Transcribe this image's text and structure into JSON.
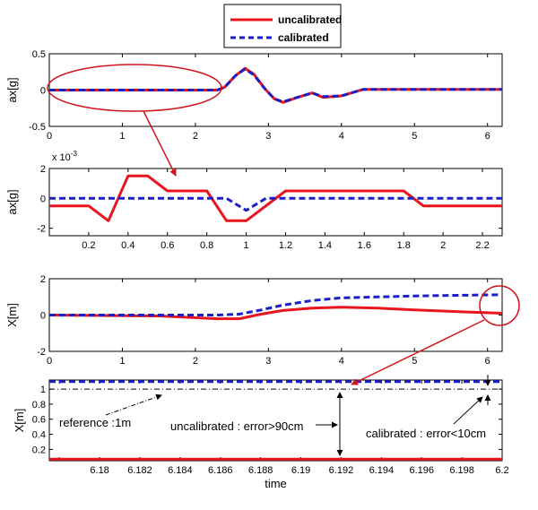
{
  "legend": {
    "entries": [
      {
        "label": "uncalibrated",
        "color": "#e8141e",
        "dash": "solid"
      },
      {
        "label": "calibrated",
        "color": "#1a1fc8",
        "dash": "dashed"
      }
    ]
  },
  "colors": {
    "uncalibrated": "#e8141e",
    "calibrated": "#1a1fc8",
    "annotation": "#d0141e"
  },
  "chart_data": [
    {
      "type": "line",
      "ylabel": "ax[g]",
      "xlim": [
        0,
        6.2
      ],
      "ylim": [
        -0.5,
        0.5
      ],
      "xticks": [
        0,
        1,
        2,
        3,
        4,
        5,
        6
      ],
      "xtick_labels": [
        "0",
        "1",
        "2",
        "3",
        "4",
        "5",
        "6"
      ],
      "yticks": [
        -0.5,
        0,
        0.5
      ],
      "ytick_labels": [
        "-0.5",
        "0",
        "0.5"
      ],
      "series": [
        {
          "name": "uncalibrated",
          "color": "#e8141e",
          "dash": "solid",
          "x": [
            0,
            2.3,
            2.4,
            2.55,
            2.68,
            2.8,
            2.95,
            3.08,
            3.2,
            3.4,
            3.6,
            3.75,
            4.0,
            4.2,
            4.3,
            6.2
          ],
          "y": [
            0,
            0,
            0.04,
            0.2,
            0.3,
            0.22,
            0.02,
            -0.12,
            -0.17,
            -0.1,
            -0.04,
            -0.1,
            -0.08,
            -0.02,
            0.01,
            0.01
          ]
        },
        {
          "name": "calibrated",
          "color": "#1a1fc8",
          "dash": "dashed",
          "x": [
            0,
            2.3,
            2.4,
            2.55,
            2.68,
            2.8,
            2.95,
            3.08,
            3.2,
            3.4,
            3.6,
            3.75,
            4.0,
            4.2,
            4.3,
            6.2
          ],
          "y": [
            0,
            0,
            0.04,
            0.2,
            0.29,
            0.21,
            0.02,
            -0.12,
            -0.16,
            -0.1,
            -0.04,
            -0.09,
            -0.08,
            -0.02,
            0.01,
            0.01
          ]
        }
      ]
    },
    {
      "type": "line",
      "ylabel": "ax[g]",
      "exponent_label": "x 10",
      "exponent_power": "-3",
      "xlim": [
        0,
        2.3
      ],
      "ylim": [
        -2.5,
        2
      ],
      "xticks": [
        0.2,
        0.4,
        0.6,
        0.8,
        1,
        1.2,
        1.4,
        1.6,
        1.8,
        2,
        2.2
      ],
      "xtick_labels": [
        "0.2",
        "0.4",
        "0.6",
        "0.8",
        "1",
        "1.2",
        "1.4",
        "1.6",
        "1.8",
        "2",
        "2.2"
      ],
      "yticks": [
        -2,
        0,
        2
      ],
      "ytick_labels": [
        "-2",
        "0",
        "2"
      ],
      "series": [
        {
          "name": "uncalibrated",
          "color": "#e8141e",
          "dash": "solid",
          "x": [
            0,
            0.2,
            0.3,
            0.4,
            0.5,
            0.6,
            0.8,
            0.9,
            1.0,
            1.1,
            1.2,
            1.8,
            1.9,
            2.3
          ],
          "y": [
            -0.5,
            -0.5,
            -1.5,
            1.5,
            1.5,
            0.5,
            0.5,
            -1.5,
            -1.5,
            -0.5,
            0.5,
            0.5,
            -0.5,
            -0.5
          ]
        },
        {
          "name": "calibrated",
          "color": "#1a1fc8",
          "dash": "dashed",
          "x": [
            0,
            0.9,
            1.0,
            1.1,
            2.3
          ],
          "y": [
            0,
            0,
            -0.8,
            0,
            0
          ]
        }
      ]
    },
    {
      "type": "line",
      "ylabel": "X[m]",
      "xlim": [
        0,
        6.2
      ],
      "ylim": [
        -2,
        2
      ],
      "xticks": [
        0,
        1,
        2,
        3,
        4,
        5,
        6
      ],
      "xtick_labels": [
        "0",
        "1",
        "2",
        "3",
        "4",
        "5",
        "6"
      ],
      "yticks": [
        -2,
        0,
        2
      ],
      "ytick_labels": [
        "-2",
        "0",
        "2"
      ],
      "series": [
        {
          "name": "uncalibrated",
          "color": "#e8141e",
          "dash": "solid",
          "x": [
            0,
            1.5,
            2.3,
            2.6,
            2.9,
            3.2,
            3.6,
            4.0,
            4.5,
            5.0,
            5.5,
            6.2
          ],
          "y": [
            0,
            -0.05,
            -0.2,
            -0.2,
            0.05,
            0.25,
            0.38,
            0.43,
            0.38,
            0.28,
            0.2,
            0.1
          ]
        },
        {
          "name": "calibrated",
          "color": "#1a1fc8",
          "dash": "dashed",
          "x": [
            0,
            1.5,
            2.3,
            2.6,
            2.9,
            3.2,
            3.6,
            4.0,
            4.5,
            5.0,
            5.5,
            6.2
          ],
          "y": [
            0,
            0,
            0,
            0.05,
            0.28,
            0.55,
            0.8,
            0.95,
            1.0,
            1.05,
            1.08,
            1.12
          ]
        }
      ]
    },
    {
      "type": "line",
      "xlabel": "time",
      "ylabel": "X[m]",
      "xlim": [
        6.1775,
        6.2
      ],
      "ylim": [
        0.05,
        1.12
      ],
      "xticks": [
        6.178,
        6.18,
        6.182,
        6.184,
        6.186,
        6.188,
        6.19,
        6.192,
        6.194,
        6.196,
        6.198,
        6.2
      ],
      "xtick_labels": [
        "",
        "6.18",
        "6.182",
        "6.184",
        "6.186",
        "6.188",
        "6.19",
        "6.192",
        "6.194",
        "6.196",
        "6.198",
        "6.2"
      ],
      "yticks": [
        0.2,
        0.4,
        0.6,
        0.8,
        1
      ],
      "ytick_labels": [
        "0.2",
        "0.4",
        "0.6",
        "0.8",
        "1"
      ],
      "series": [
        {
          "name": "uncalibrated",
          "color": "#e8141e",
          "dash": "solid",
          "x": [
            6.1775,
            6.2
          ],
          "y": [
            0.07,
            0.07
          ]
        },
        {
          "name": "calibrated",
          "color": "#1a1fc8",
          "dash": "dashed",
          "x": [
            6.1775,
            6.2
          ],
          "y": [
            1.1,
            1.1
          ]
        },
        {
          "name": "reference",
          "color": "#000000",
          "dash": "dashdot",
          "x": [
            6.1775,
            6.2
          ],
          "y": [
            1.0,
            1.0
          ]
        }
      ],
      "annotations": [
        {
          "text": "reference :1m"
        },
        {
          "text": "uncalibrated : error>90cm"
        },
        {
          "text": "calibrated : error<10cm"
        }
      ]
    }
  ]
}
